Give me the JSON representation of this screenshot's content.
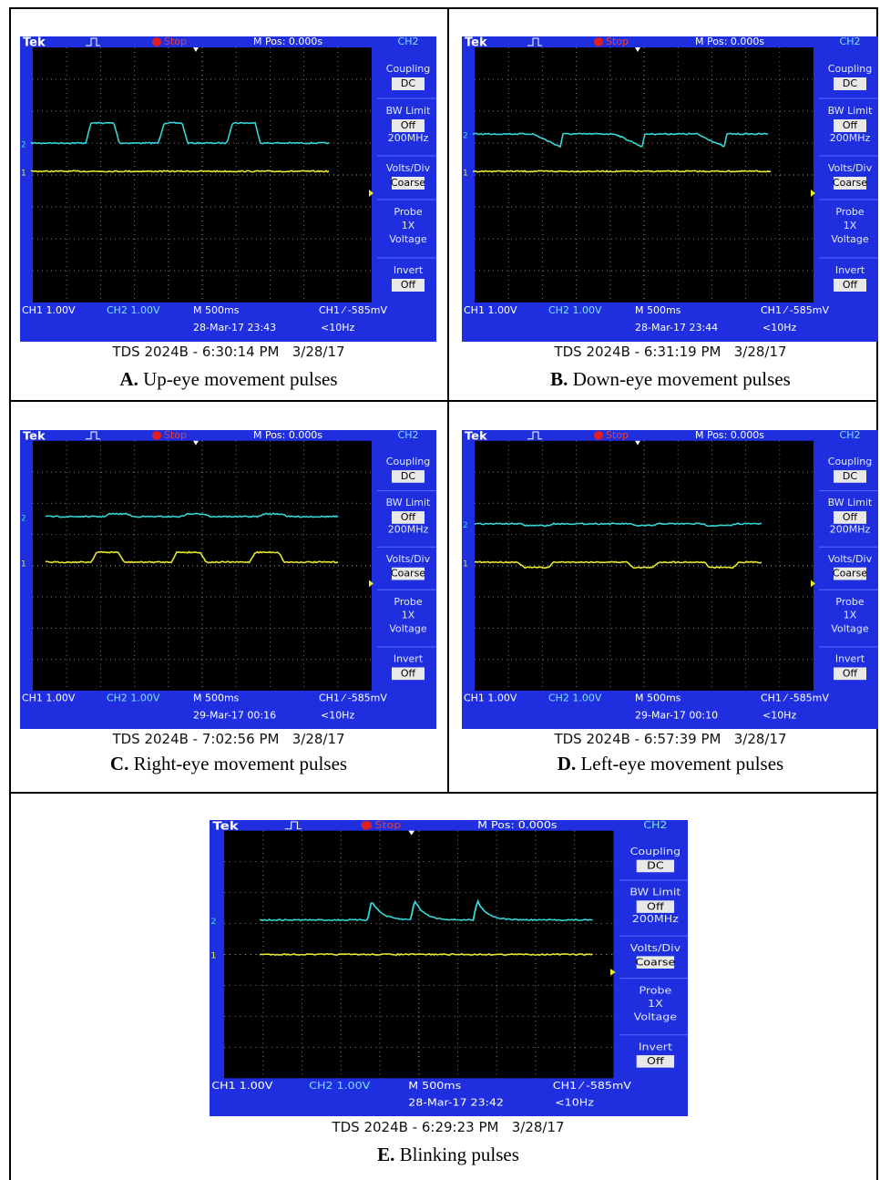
{
  "panels": [
    {
      "scope": {
        "brand": "Tek",
        "status": "Stop",
        "position": "M Pos: 0.000s",
        "menu_channel": "CH2",
        "menu": [
          [
            "Coupling",
            "DC"
          ],
          [
            "BW Limit",
            "Off",
            "200MHz"
          ],
          [
            "Volts/Div",
            "Coarse"
          ],
          [
            "Probe",
            "1X",
            "Voltage"
          ],
          [
            "Invert",
            "Off"
          ]
        ],
        "ch1_scale": "CH1 1.00V",
        "ch2_scale": "CH2 1.00V",
        "timebase": "M 500ms",
        "trigger": "CH1 ⁄ -585mV",
        "timestamp": "28-Mar-17 23:43",
        "frequency": "<10Hz",
        "ch1_marker": "1",
        "ch2_marker": "2"
      },
      "footer": "TDS 2024B - 6:30:14 PM   3/28/17",
      "label": "A.",
      "caption": "Up-eye movement pulses"
    },
    {
      "scope": {
        "brand": "Tek",
        "status": "Stop",
        "position": "M Pos: 0.000s",
        "menu_channel": "CH2",
        "menu": [
          [
            "Coupling",
            "DC"
          ],
          [
            "BW Limit",
            "Off",
            "200MHz"
          ],
          [
            "Volts/Div",
            "Coarse"
          ],
          [
            "Probe",
            "1X",
            "Voltage"
          ],
          [
            "Invert",
            "Off"
          ]
        ],
        "ch1_scale": "CH1 1.00V",
        "ch2_scale": "CH2 1.00V",
        "timebase": "M 500ms",
        "trigger": "CH1 ⁄ -585mV",
        "timestamp": "28-Mar-17 23:44",
        "frequency": "<10Hz",
        "ch1_marker": "1",
        "ch2_marker": "2"
      },
      "footer": "TDS 2024B - 6:31:19 PM   3/28/17",
      "label": "B.",
      "caption": "Down-eye movement pulses"
    },
    {
      "scope": {
        "brand": "Tek",
        "status": "Stop",
        "position": "M Pos: 0.000s",
        "menu_channel": "CH2",
        "menu": [
          [
            "Coupling",
            "DC"
          ],
          [
            "BW Limit",
            "Off",
            "200MHz"
          ],
          [
            "Volts/Div",
            "Coarse"
          ],
          [
            "Probe",
            "1X",
            "Voltage"
          ],
          [
            "Invert",
            "Off"
          ]
        ],
        "ch1_scale": "CH1 1.00V",
        "ch2_scale": "CH2 1.00V",
        "timebase": "M 500ms",
        "trigger": "CH1 ⁄ -585mV",
        "timestamp": "29-Mar-17 00:16",
        "frequency": "<10Hz",
        "ch1_marker": "1",
        "ch2_marker": "2"
      },
      "footer": "TDS 2024B - 7:02:56 PM   3/28/17",
      "label": "C.",
      "caption": "Right-eye movement pulses"
    },
    {
      "scope": {
        "brand": "Tek",
        "status": "Stop",
        "position": "M Pos: 0.000s",
        "menu_channel": "CH2",
        "menu": [
          [
            "Coupling",
            "DC"
          ],
          [
            "BW Limit",
            "Off",
            "200MHz"
          ],
          [
            "Volts/Div",
            "Coarse"
          ],
          [
            "Probe",
            "1X",
            "Voltage"
          ],
          [
            "Invert",
            "Off"
          ]
        ],
        "ch1_scale": "CH1 1.00V",
        "ch2_scale": "CH2 1.00V",
        "timebase": "M 500ms",
        "trigger": "CH1 ⁄ -585mV",
        "timestamp": "29-Mar-17 00:10",
        "frequency": "<10Hz",
        "ch1_marker": "1",
        "ch2_marker": "2"
      },
      "footer": "TDS 2024B - 6:57:39 PM   3/28/17",
      "label": "D.",
      "caption": "Left-eye movement pulses"
    },
    {
      "scope": {
        "brand": "Tek",
        "status": "Stop",
        "position": "M Pos: 0.000s",
        "menu_channel": "CH2",
        "menu": [
          [
            "Coupling",
            "DC"
          ],
          [
            "BW Limit",
            "Off",
            "200MHz"
          ],
          [
            "Volts/Div",
            "Coarse"
          ],
          [
            "Probe",
            "1X",
            "Voltage"
          ],
          [
            "Invert",
            "Off"
          ]
        ],
        "ch1_scale": "CH1 1.00V",
        "ch2_scale": "CH2 1.00V",
        "timebase": "M 500ms",
        "trigger": "CH1 ⁄ -585mV",
        "timestamp": "28-Mar-17 23:42",
        "frequency": "<10Hz",
        "ch1_marker": "1",
        "ch2_marker": "2"
      },
      "footer": "TDS 2024B - 6:29:23 PM   3/28/17",
      "label": "E.",
      "caption": "Blinking pulses"
    }
  ]
}
